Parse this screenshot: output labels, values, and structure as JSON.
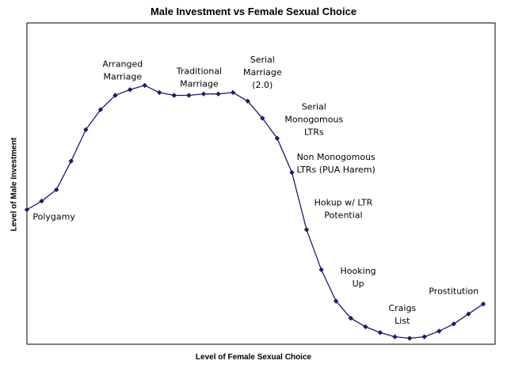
{
  "chart_data": {
    "type": "line",
    "title": "Male Investment vs Female Sexual Choice",
    "xlabel": "Level of Female Sexual Choice",
    "ylabel": "Level of Male Investment",
    "xlim": [
      0,
      31
    ],
    "ylim": [
      0,
      100
    ],
    "grid": false,
    "legend": "none",
    "series": [
      {
        "color": "#1b1b6b",
        "x": [
          0,
          1,
          2,
          3,
          4,
          5,
          6,
          7,
          8,
          9,
          10,
          11,
          12,
          13,
          14,
          15,
          16,
          17,
          18,
          19,
          20,
          21,
          22,
          23,
          24,
          25,
          26,
          27,
          28,
          29,
          30,
          31
        ],
        "values": [
          46,
          49,
          53,
          63,
          74,
          81,
          86,
          88,
          89.5,
          87,
          86,
          86,
          86.5,
          86.5,
          87,
          84,
          78,
          71,
          59,
          39,
          25,
          14,
          8,
          5,
          3,
          1.5,
          1,
          1.5,
          3.5,
          6,
          9.5,
          13
        ]
      }
    ],
    "annotations": [
      {
        "id": "polygamy",
        "lines": [
          "Polygamy"
        ],
        "x": 0.4,
        "y": 42.5,
        "anchor": "start"
      },
      {
        "id": "arranged-marriage",
        "lines": [
          "Arranged",
          "Marriage"
        ],
        "x": 6.5,
        "y": 96,
        "anchor": "middle"
      },
      {
        "id": "traditional-marriage",
        "lines": [
          "Traditional",
          "Marriage"
        ],
        "x": 11.7,
        "y": 93.5,
        "anchor": "middle"
      },
      {
        "id": "serial-marriage",
        "lines": [
          "Serial",
          "Marriage",
          "(2.0)"
        ],
        "x": 16,
        "y": 97.5,
        "anchor": "middle"
      },
      {
        "id": "serial-monogomous-ltrs",
        "lines": [
          "Serial",
          "Monogomous",
          "LTRs"
        ],
        "x": 19.5,
        "y": 81,
        "anchor": "middle"
      },
      {
        "id": "non-monogomous-ltrs",
        "lines": [
          "Non Monogomous",
          "LTRs (PUA Harem)"
        ],
        "x": 21,
        "y": 63.5,
        "anchor": "middle"
      },
      {
        "id": "hokup-ltr-potential",
        "lines": [
          "Hokup w/ LTR",
          "Potential"
        ],
        "x": 21.5,
        "y": 47.5,
        "anchor": "middle"
      },
      {
        "id": "hooking-up",
        "lines": [
          "Hooking",
          "Up"
        ],
        "x": 22.5,
        "y": 23.5,
        "anchor": "middle"
      },
      {
        "id": "craigs-list",
        "lines": [
          "Craigs",
          "List"
        ],
        "x": 25.5,
        "y": 10.5,
        "anchor": "middle"
      },
      {
        "id": "prostitution",
        "lines": [
          "Prostitution"
        ],
        "x": 29,
        "y": 16.5,
        "anchor": "middle"
      }
    ]
  }
}
